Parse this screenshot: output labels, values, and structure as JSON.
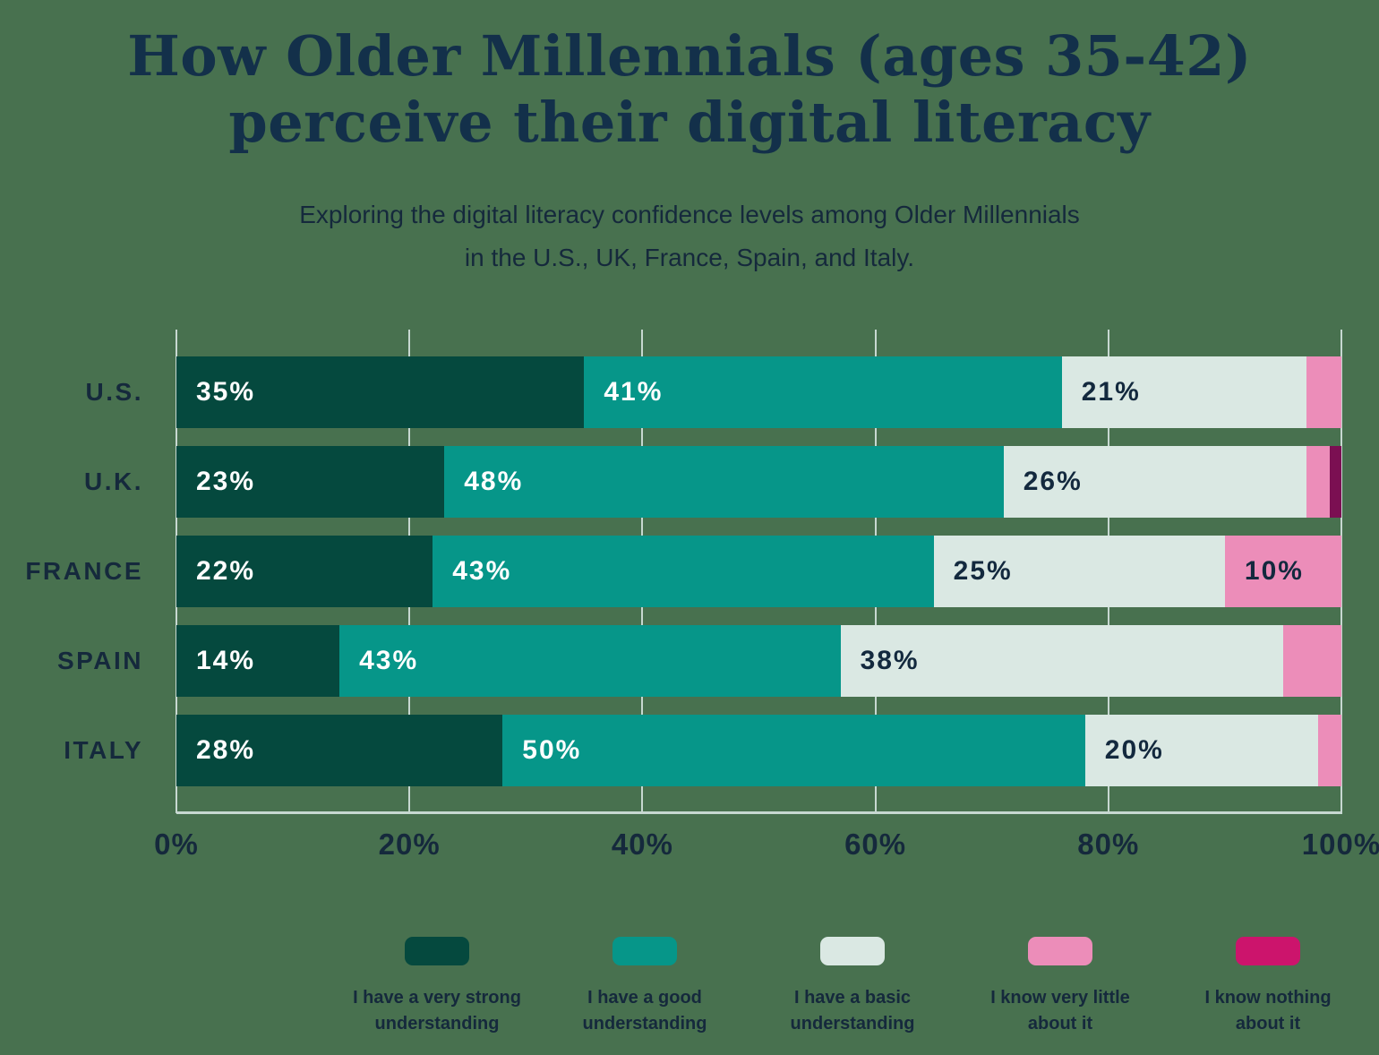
{
  "title": {
    "line1": "How Older Millennials (ages 35-42)",
    "line2": "perceive their digital literacy"
  },
  "subtitle": {
    "line1": "Exploring the digital literacy confidence levels among Older Millennials",
    "line2": "in the U.S., UK, France, Spain, and Italy."
  },
  "chart_data": {
    "type": "bar",
    "orientation": "horizontal",
    "stacked": true,
    "grid": true,
    "legend_position": "bottom",
    "xlim": [
      0,
      100
    ],
    "x_ticks": [
      "0%",
      "20%",
      "40%",
      "60%",
      "80%",
      "100%"
    ],
    "x_tick_values": [
      0,
      20,
      40,
      60,
      80,
      100
    ],
    "categories": [
      "U.S.",
      "U.K.",
      "FRANCE",
      "SPAIN",
      "ITALY"
    ],
    "value_label_suffix": "%",
    "value_label_min": 10,
    "series": [
      {
        "name": "I have a very strong understanding",
        "color": "#05493E",
        "label_color": "#FFFFFF",
        "values": [
          35,
          23,
          22,
          14,
          28
        ]
      },
      {
        "name": "I have a good understanding",
        "color": "#069689",
        "label_color": "#FFFFFF",
        "values": [
          41,
          48,
          43,
          43,
          50
        ]
      },
      {
        "name": "I have a basic understanding",
        "color": "#DAE8E3",
        "label_color": "#13293E",
        "values": [
          21,
          26,
          25,
          38,
          20
        ]
      },
      {
        "name": "I know very little about it",
        "color": "#EC8DB9",
        "label_color": "#13293E",
        "values": [
          3,
          2,
          10,
          5,
          2
        ]
      },
      {
        "name": "I know nothing about it",
        "color": "#CC146C",
        "bar_color": "#7B0F52",
        "label_color": "#FFFFFF",
        "values": [
          0,
          1,
          0,
          0,
          0
        ]
      }
    ]
  },
  "colors": {
    "background": "#48714F",
    "title_text": "#13304A",
    "body_text": "#15293C",
    "gridline": "#C7D8D1"
  }
}
